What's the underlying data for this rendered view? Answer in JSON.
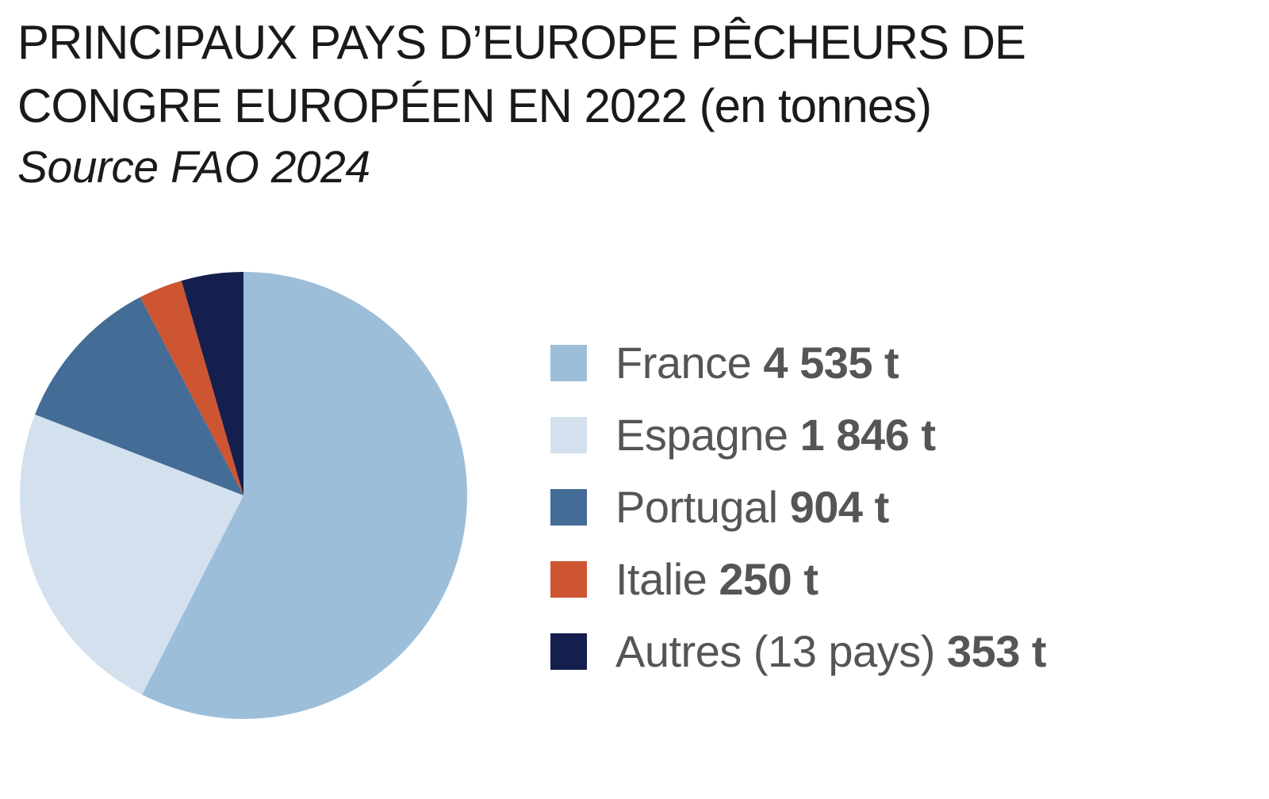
{
  "header": {
    "title": "PRINCIPAUX PAYS D’EUROPE PÊCHEURS DE CONGRE EUROPÉEN EN 2022 (en tonnes)",
    "source": "Source FAO 2024"
  },
  "chart_data": {
    "type": "pie",
    "title": "PRINCIPAUX PAYS D’EUROPE PÊCHEURS DE CONGRE EUROPÉEN EN 2022 (en tonnes)",
    "subtitle": "Source FAO 2024",
    "unit": "t",
    "start_angle": "12 o'clock",
    "direction": "clockwise",
    "legend_position": "right",
    "categories": [
      "France",
      "Espagne",
      "Portugal",
      "Italie",
      "Autres (13 pays)"
    ],
    "values": [
      4535,
      1846,
      904,
      250,
      353
    ],
    "value_labels": [
      "4 535 t",
      "1 846 t",
      "904 t",
      "250 t",
      "353 t"
    ],
    "colors": [
      "#9dbed9",
      "#d3e0ed",
      "#436c96",
      "#cd5532",
      "#151f4d"
    ]
  }
}
